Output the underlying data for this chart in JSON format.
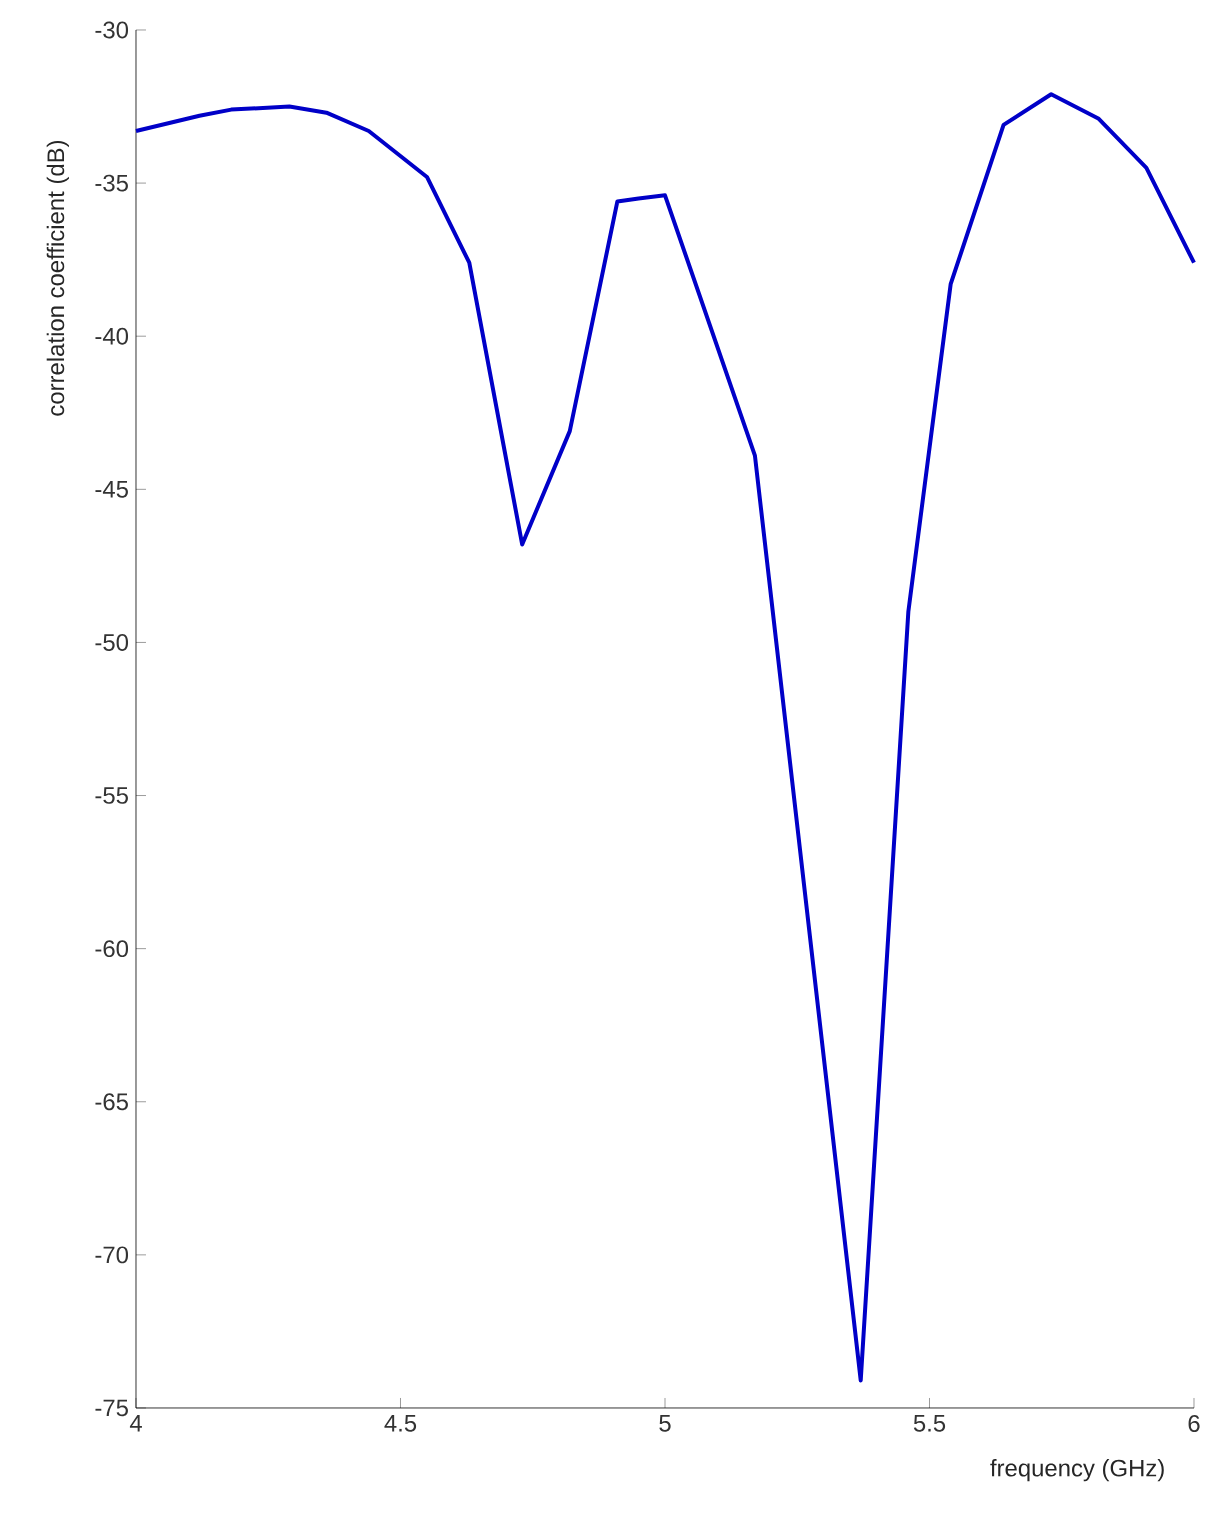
{
  "chart_data": {
    "type": "line",
    "xlabel": "frequency (GHz)",
    "ylabel": "correlation coefficient (dB)",
    "x": [
      4.0,
      4.12,
      4.18,
      4.29,
      4.36,
      4.44,
      4.55,
      4.63,
      4.73,
      4.82,
      4.91,
      4.95,
      5.0,
      5.17,
      5.37,
      5.46,
      5.54,
      5.64,
      5.73,
      5.82,
      5.91,
      6.0
    ],
    "series": [
      {
        "color": "#0000c8",
        "values": [
          -33.3,
          -32.8,
          -32.6,
          -32.5,
          -32.7,
          -33.3,
          -34.8,
          -37.6,
          -46.8,
          -43.1,
          -35.6,
          -35.5,
          -35.4,
          -43.9,
          -74.1,
          -49.0,
          -38.3,
          -33.1,
          -32.1,
          -32.9,
          -34.5,
          -37.6
        ]
      }
    ],
    "xlim": [
      4,
      6
    ],
    "ylim": [
      -75,
      -30
    ],
    "xticks": [
      4,
      4.5,
      5,
      5.5,
      6
    ],
    "yticks": [
      -75,
      -70,
      -65,
      -60,
      -55,
      -50,
      -45,
      -40,
      -35,
      -30
    ],
    "grid": false,
    "marker": "none",
    "line_style": "solid"
  }
}
